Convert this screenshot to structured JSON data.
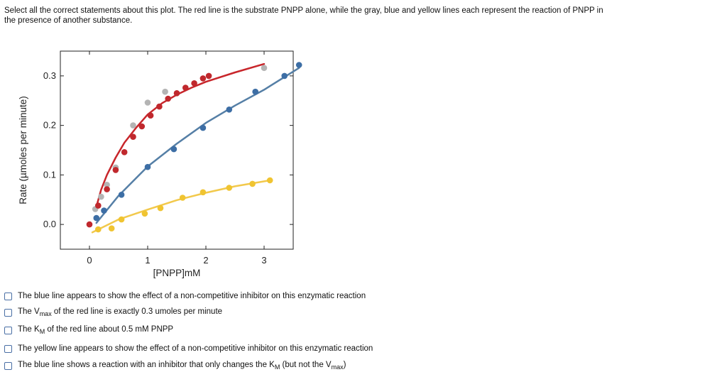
{
  "question": {
    "line1": "Select all the correct statements about this plot. The red line is the substrate PNPP alone, while the gray, blue and yellow lines each represent the reaction of PNPP in",
    "line2": "the presence of another substance."
  },
  "colors": {
    "red": "#c0282d",
    "gray": "#b4b4b4",
    "blue": "#3d6ea5",
    "yellow": "#f0c431",
    "red_line": "#c8262b",
    "blue_line": "#557fa6",
    "yellow_line": "#f2c94c"
  },
  "chart_data": {
    "type": "scatter",
    "title": "",
    "xlabel": "[PNPP]mM",
    "ylabel": "Rate (µmoles per minute)",
    "xlim": [
      -0.5,
      3.5
    ],
    "ylim": [
      -0.05,
      0.35
    ],
    "xticks": [
      0,
      1,
      2,
      3
    ],
    "yticks": [
      0.0,
      0.1,
      0.2,
      0.3
    ],
    "xtick_labels": [
      "0",
      "1",
      "2",
      "3"
    ],
    "ytick_labels": [
      "0.0",
      "0.1",
      "0.2",
      "0.3"
    ],
    "series": [
      {
        "color": "gray",
        "points": [
          [
            0.1,
            0.031
          ],
          [
            0.2,
            0.056
          ],
          [
            0.3,
            0.08
          ],
          [
            0.45,
            0.115
          ],
          [
            0.75,
            0.2
          ],
          [
            1.0,
            0.246
          ],
          [
            1.3,
            0.268
          ],
          [
            3.0,
            0.316
          ]
        ]
      },
      {
        "color": "red",
        "curve_color": "red_line",
        "curve": [
          [
            0.12,
            0.036
          ],
          [
            0.2,
            0.07
          ],
          [
            0.3,
            0.1
          ],
          [
            0.45,
            0.135
          ],
          [
            0.6,
            0.165
          ],
          [
            0.8,
            0.195
          ],
          [
            1.0,
            0.222
          ],
          [
            1.25,
            0.245
          ],
          [
            1.5,
            0.262
          ],
          [
            1.75,
            0.276
          ],
          [
            2.0,
            0.288
          ],
          [
            2.5,
            0.307
          ],
          [
            3.0,
            0.324
          ]
        ],
        "points": [
          [
            0.0,
            0.0
          ],
          [
            0.15,
            0.038
          ],
          [
            0.3,
            0.071
          ],
          [
            0.45,
            0.11
          ],
          [
            0.6,
            0.146
          ],
          [
            0.75,
            0.177
          ],
          [
            0.9,
            0.198
          ],
          [
            1.05,
            0.22
          ],
          [
            1.2,
            0.238
          ],
          [
            1.35,
            0.254
          ],
          [
            1.5,
            0.265
          ],
          [
            1.65,
            0.276
          ],
          [
            1.8,
            0.285
          ],
          [
            1.95,
            0.295
          ],
          [
            2.05,
            0.3
          ]
        ]
      },
      {
        "color": "blue",
        "curve_color": "blue_line",
        "curve": [
          [
            0.12,
            0.003
          ],
          [
            0.5,
            0.058
          ],
          [
            1.0,
            0.117
          ],
          [
            1.5,
            0.163
          ],
          [
            2.0,
            0.205
          ],
          [
            2.5,
            0.24
          ],
          [
            3.0,
            0.272
          ],
          [
            3.6,
            0.316
          ]
        ],
        "points": [
          [
            0.12,
            0.013
          ],
          [
            0.25,
            0.028
          ],
          [
            0.55,
            0.06
          ],
          [
            1.0,
            0.116
          ],
          [
            1.45,
            0.152
          ],
          [
            1.95,
            0.195
          ],
          [
            2.4,
            0.232
          ],
          [
            2.85,
            0.268
          ],
          [
            3.35,
            0.3
          ],
          [
            3.6,
            0.322
          ]
        ]
      },
      {
        "color": "yellow",
        "curve_color": "yellow_line",
        "curve": [
          [
            0.05,
            -0.016
          ],
          [
            0.5,
            0.01
          ],
          [
            1.0,
            0.03
          ],
          [
            1.5,
            0.049
          ],
          [
            2.0,
            0.064
          ],
          [
            2.5,
            0.077
          ],
          [
            3.1,
            0.089
          ]
        ],
        "points": [
          [
            0.15,
            -0.01
          ],
          [
            0.38,
            -0.008
          ],
          [
            0.55,
            0.01
          ],
          [
            0.95,
            0.022
          ],
          [
            1.22,
            0.033
          ],
          [
            1.6,
            0.054
          ],
          [
            1.95,
            0.065
          ],
          [
            2.4,
            0.074
          ],
          [
            2.8,
            0.082
          ],
          [
            3.1,
            0.089
          ]
        ]
      }
    ]
  },
  "options": [
    {
      "parts": [
        {
          "t": "The blue line appears to show the effect of a non-competitive inhibitor on this enzymatic reaction"
        }
      ]
    },
    {
      "parts": [
        {
          "t": "The V"
        },
        {
          "t": "max",
          "sub": true
        },
        {
          "t": " of the red line is exactly 0.3 umoles per minute"
        }
      ]
    },
    {
      "parts": [
        {
          "t": "The K"
        },
        {
          "t": "M",
          "sub": true
        },
        {
          "t": " of the red line about 0.5 mM PNPP"
        }
      ]
    },
    {
      "parts": [
        {
          "t": "The yellow line appears to show the effect of a non-competitive inhibitor on this enzymatic reaction"
        }
      ]
    },
    {
      "parts": [
        {
          "t": "The blue line shows a reaction with an inhibitor that only changes the K"
        },
        {
          "t": "M",
          "sub": true
        },
        {
          "t": " (but not the V"
        },
        {
          "t": "max",
          "sub": true
        },
        {
          "t": ")"
        }
      ]
    }
  ]
}
